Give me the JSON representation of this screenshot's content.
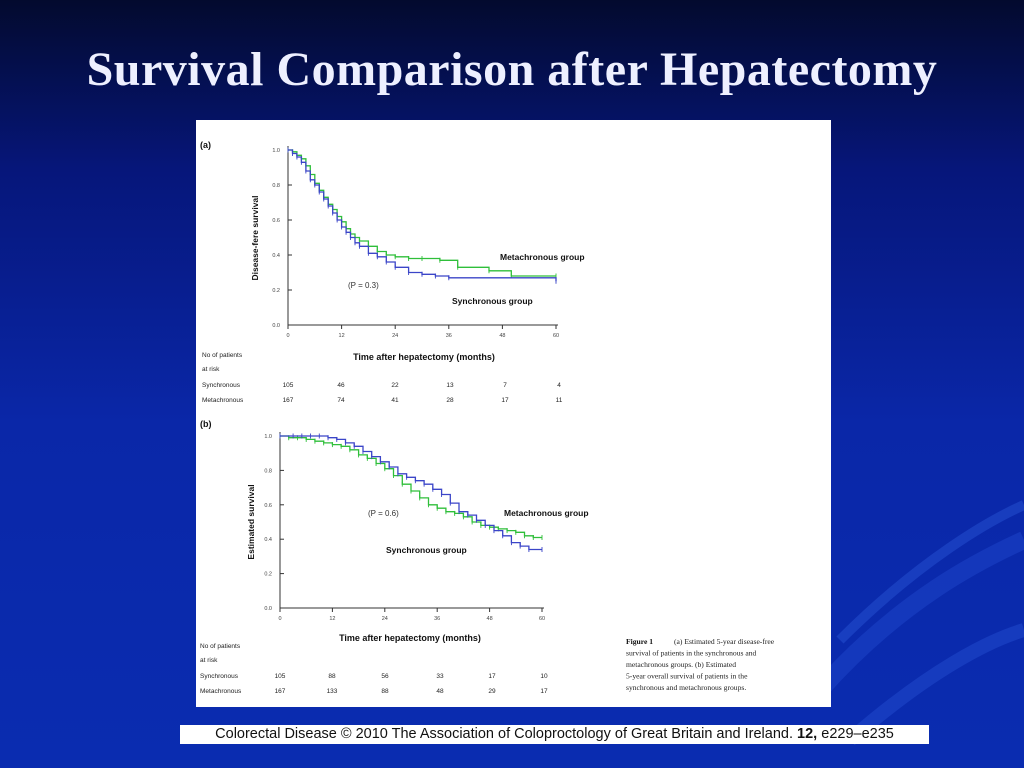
{
  "slide": {
    "title": "Survival Comparison after Hepatectomy",
    "citation_text": "Colorectal Disease © 2010 The Association of Coloproctology of Great Britain and Ireland.",
    "citation_volume": "12,",
    "citation_pages": "e229–e235"
  },
  "figure": {
    "caption_lines": [
      "(a) Estimated 5-year disease-free",
      "survival of patients in the synchronous and",
      "metachronous groups. (b) Estimated",
      "5-year overall survival of patients in the",
      "synchronous and metachronous groups."
    ],
    "caption_label": "Figure 1"
  },
  "colors": {
    "synchronous": "#3b45c8",
    "metachronous": "#2fbf3a"
  },
  "chart_data": [
    {
      "type": "line",
      "panel_label": "(a)",
      "xlabel": "Time after hepatectomy (months)",
      "ylabel": "Disease-fere survival",
      "xlim": [
        0,
        60
      ],
      "ylim": [
        0,
        1.0
      ],
      "x_ticks": [
        "0",
        "12",
        "24",
        "36",
        "48",
        "60"
      ],
      "y_ticks": [
        "0.0",
        "0.2",
        "0.4",
        "0.6",
        "0.8",
        "1.0"
      ],
      "annotation": "(P = 0.3)",
      "series": [
        {
          "name": "Metachronous group",
          "x": [
            0,
            1,
            2,
            3,
            4,
            5,
            6,
            7,
            8,
            9,
            10,
            11,
            12,
            13,
            14,
            15,
            16,
            18,
            20,
            22,
            24,
            27,
            30,
            34,
            38,
            45,
            50,
            60
          ],
          "y": [
            1.0,
            0.99,
            0.97,
            0.95,
            0.91,
            0.86,
            0.81,
            0.77,
            0.73,
            0.69,
            0.66,
            0.62,
            0.59,
            0.55,
            0.52,
            0.5,
            0.48,
            0.45,
            0.42,
            0.4,
            0.39,
            0.38,
            0.38,
            0.37,
            0.33,
            0.31,
            0.28,
            0.28
          ]
        },
        {
          "name": "Synchronous group",
          "x": [
            0,
            1,
            2,
            3,
            4,
            5,
            6,
            7,
            8,
            9,
            10,
            11,
            12,
            13,
            14,
            15,
            16,
            18,
            20,
            22,
            24,
            27,
            30,
            33,
            36,
            60
          ],
          "y": [
            1.0,
            0.98,
            0.96,
            0.93,
            0.88,
            0.83,
            0.8,
            0.76,
            0.72,
            0.68,
            0.64,
            0.6,
            0.56,
            0.53,
            0.5,
            0.47,
            0.45,
            0.41,
            0.39,
            0.36,
            0.33,
            0.3,
            0.29,
            0.28,
            0.27,
            0.25
          ]
        }
      ],
      "risk_table": {
        "header": [
          "No of patients",
          "at risk"
        ],
        "rows": [
          {
            "label": "Synchronous",
            "values": [
              "105",
              "46",
              "22",
              "13",
              "7",
              "4"
            ]
          },
          {
            "label": "Metachronous",
            "values": [
              "167",
              "74",
              "41",
              "28",
              "17",
              "11"
            ]
          }
        ]
      }
    },
    {
      "type": "line",
      "panel_label": "(b)",
      "xlabel": "Time after hepatectomy (months)",
      "ylabel": "Estimated survival",
      "xlim": [
        0,
        60
      ],
      "ylim": [
        0,
        1.0
      ],
      "x_ticks": [
        "0",
        "12",
        "24",
        "36",
        "48",
        "60"
      ],
      "y_ticks": [
        "0.0",
        "0.2",
        "0.4",
        "0.6",
        "0.8",
        "1.0"
      ],
      "annotation": "(P = 0.6)",
      "series": [
        {
          "name": "Metachronous group",
          "x": [
            0,
            2,
            4,
            6,
            8,
            10,
            12,
            14,
            16,
            18,
            20,
            22,
            24,
            26,
            28,
            30,
            32,
            34,
            36,
            38,
            40,
            42,
            44,
            46,
            48,
            50,
            52,
            54,
            56,
            58,
            60
          ],
          "y": [
            1.0,
            0.99,
            0.99,
            0.98,
            0.97,
            0.96,
            0.95,
            0.94,
            0.92,
            0.89,
            0.87,
            0.84,
            0.81,
            0.77,
            0.72,
            0.68,
            0.64,
            0.6,
            0.58,
            0.56,
            0.55,
            0.53,
            0.5,
            0.48,
            0.47,
            0.46,
            0.45,
            0.44,
            0.42,
            0.41,
            0.41
          ]
        },
        {
          "name": "Synchronous group",
          "x": [
            0,
            3,
            5,
            7,
            9,
            11,
            13,
            15,
            17,
            19,
            21,
            23,
            25,
            27,
            29,
            31,
            33,
            35,
            37,
            39,
            41,
            43,
            45,
            47,
            49,
            51,
            53,
            55,
            57,
            60
          ],
          "y": [
            1.0,
            1.0,
            1.0,
            1.0,
            1.0,
            0.99,
            0.98,
            0.96,
            0.94,
            0.91,
            0.88,
            0.85,
            0.82,
            0.78,
            0.76,
            0.74,
            0.72,
            0.69,
            0.66,
            0.61,
            0.56,
            0.54,
            0.51,
            0.48,
            0.45,
            0.42,
            0.38,
            0.36,
            0.34,
            0.34
          ]
        }
      ],
      "risk_table": {
        "header": [
          "No of patients",
          "at risk"
        ],
        "rows": [
          {
            "label": "Synchronous",
            "values": [
              "105",
              "88",
              "56",
              "33",
              "17",
              "10"
            ]
          },
          {
            "label": "Metachronous",
            "values": [
              "167",
              "133",
              "88",
              "48",
              "29",
              "17"
            ]
          }
        ]
      }
    }
  ]
}
